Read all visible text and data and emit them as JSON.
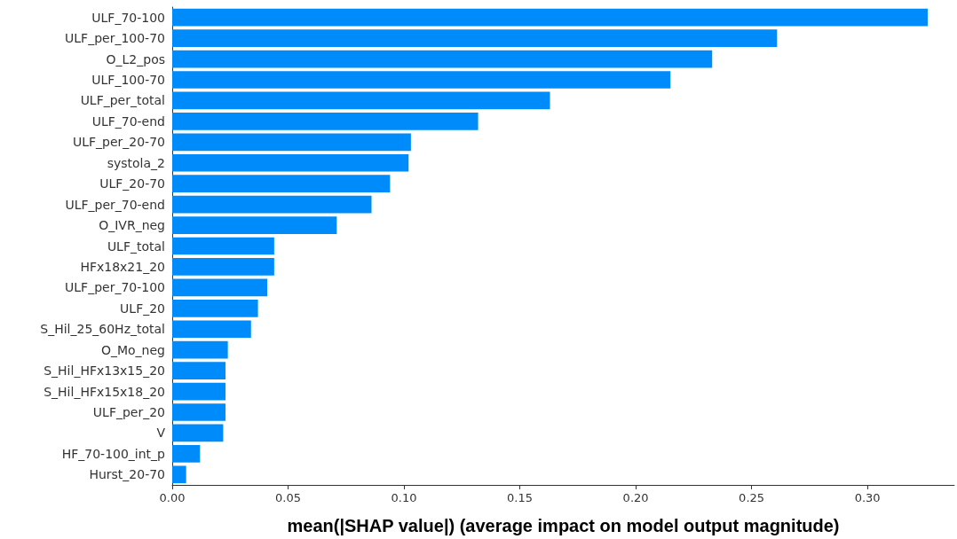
{
  "chart_data": {
    "type": "bar",
    "orientation": "horizontal",
    "xlabel": "mean(|SHAP value|) (average impact on model output magnitude)",
    "categories": [
      "ULF_70-100",
      "ULF_per_100-70",
      "O_L2_pos",
      "ULF_100-70",
      "ULF_per_total",
      "ULF_70-end",
      "ULF_per_20-70",
      "systola_2",
      "ULF_20-70",
      "ULF_per_70-end",
      "O_IVR_neg",
      "ULF_total",
      "HFx18x21_20",
      "ULF_per_70-100",
      "ULF_20",
      "S_Hil_25_60Hz_total",
      "O_Mo_neg",
      "S_Hil_HFx13x15_20",
      "S_Hil_HFx15x18_20",
      "ULF_per_20",
      "V",
      "HF_70-100_int_p",
      "Hurst_20-70"
    ],
    "values": [
      0.326,
      0.261,
      0.233,
      0.215,
      0.163,
      0.132,
      0.103,
      0.102,
      0.094,
      0.086,
      0.071,
      0.044,
      0.044,
      0.041,
      0.037,
      0.034,
      0.024,
      0.023,
      0.023,
      0.023,
      0.022,
      0.012,
      0.006
    ],
    "color": "#008bfb",
    "xlim": [
      0,
      0.3375
    ],
    "xticks": [
      {
        "value": 0,
        "label": "0.00"
      },
      {
        "value": 0.05,
        "label": "0.05"
      },
      {
        "value": 0.1,
        "label": "0.10"
      },
      {
        "value": 0.15,
        "label": "0.15"
      },
      {
        "value": 0.2,
        "label": "0.20"
      },
      {
        "value": 0.25,
        "label": "0.25"
      },
      {
        "value": 0.3,
        "label": "0.30"
      }
    ],
    "grid": false
  }
}
